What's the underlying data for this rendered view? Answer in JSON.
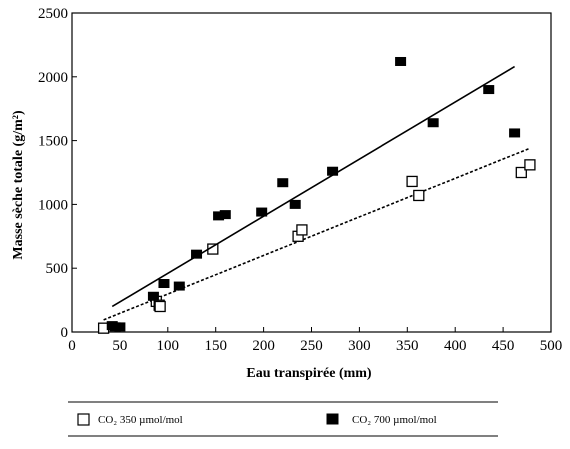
{
  "chart_data": {
    "type": "scatter",
    "xlabel": "Eau transpirée (mm)",
    "ylabel": "Masse sèche totale (g/m²)",
    "xlim": [
      0,
      500
    ],
    "ylim": [
      0,
      2500
    ],
    "xticks": [
      0,
      50,
      100,
      150,
      200,
      250,
      300,
      350,
      400,
      450,
      500
    ],
    "yticks": [
      0,
      500,
      1000,
      1500,
      2000,
      2500
    ],
    "grid": false,
    "legend_position": "bottom",
    "series": [
      {
        "name": "CO₂ 350 µmol/mol",
        "marker": "open-square",
        "color": "#000000",
        "points": [
          {
            "x": 33,
            "y": 30
          },
          {
            "x": 88,
            "y": 240
          },
          {
            "x": 91,
            "y": 210
          },
          {
            "x": 92,
            "y": 200
          },
          {
            "x": 147,
            "y": 650
          },
          {
            "x": 236,
            "y": 750
          },
          {
            "x": 240,
            "y": 800
          },
          {
            "x": 355,
            "y": 1180
          },
          {
            "x": 362,
            "y": 1070
          },
          {
            "x": 469,
            "y": 1250
          },
          {
            "x": 478,
            "y": 1310
          }
        ],
        "trendline": {
          "style": "dashed",
          "x": [
            33,
            478
          ],
          "y": [
            95,
            1440
          ]
        }
      },
      {
        "name": "CO₂ 700 µmol/mol",
        "marker": "filled-square",
        "color": "#000000",
        "points": [
          {
            "x": 42,
            "y": 50
          },
          {
            "x": 45,
            "y": 40
          },
          {
            "x": 50,
            "y": 40
          },
          {
            "x": 85,
            "y": 280
          },
          {
            "x": 96,
            "y": 380
          },
          {
            "x": 112,
            "y": 360
          },
          {
            "x": 130,
            "y": 610
          },
          {
            "x": 153,
            "y": 910
          },
          {
            "x": 160,
            "y": 920
          },
          {
            "x": 198,
            "y": 940
          },
          {
            "x": 220,
            "y": 1170
          },
          {
            "x": 233,
            "y": 1000
          },
          {
            "x": 272,
            "y": 1260
          },
          {
            "x": 343,
            "y": 2120
          },
          {
            "x": 377,
            "y": 1640
          },
          {
            "x": 435,
            "y": 1900
          },
          {
            "x": 462,
            "y": 1560
          }
        ],
        "trendline": {
          "style": "solid",
          "x": [
            42,
            462
          ],
          "y": [
            200,
            2080
          ]
        }
      }
    ]
  }
}
